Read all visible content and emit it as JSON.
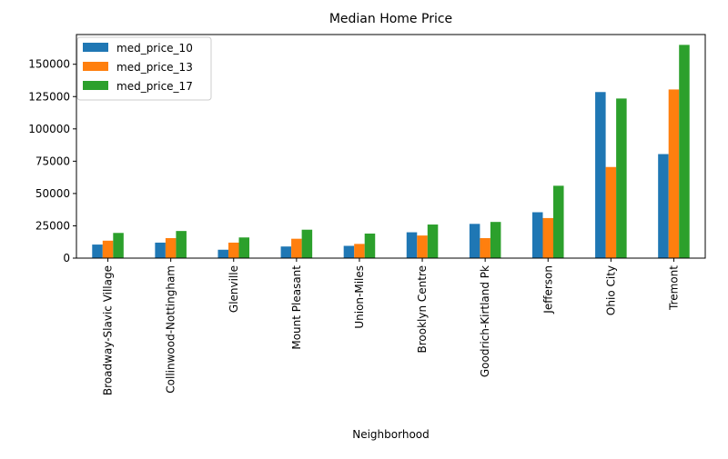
{
  "chart_data": {
    "type": "bar",
    "title": "Median Home Price",
    "xlabel": "Neighborhood",
    "ylabel": "",
    "ylim": [
      0,
      173000
    ],
    "yticks": [
      0,
      25000,
      50000,
      75000,
      100000,
      125000,
      150000
    ],
    "ytick_labels": [
      "0",
      "25000",
      "50000",
      "75000",
      "100000",
      "125000",
      "150000"
    ],
    "grid": false,
    "legend_position": "top-left",
    "categories": [
      "Broadway-Slavic Village",
      "Collinwood-Nottingham",
      "Glenville",
      "Mount Pleasant",
      "Union-Miles",
      "Brooklyn Centre",
      "Goodrich-Kirtland Pk",
      "Jefferson",
      "Ohio City",
      "Tremont"
    ],
    "series": [
      {
        "name": "med_price_10",
        "color": "#1f77b4",
        "values": [
          10500,
          12000,
          6500,
          9000,
          9500,
          20000,
          26500,
          35500,
          128500,
          80500
        ]
      },
      {
        "name": "med_price_13",
        "color": "#ff7f0e",
        "values": [
          13500,
          15500,
          12000,
          15000,
          11000,
          17500,
          15500,
          31000,
          70500,
          130500
        ]
      },
      {
        "name": "med_price_17",
        "color": "#2ca02c",
        "values": [
          19500,
          21000,
          16000,
          22000,
          19000,
          26000,
          28000,
          56000,
          123500,
          165000
        ]
      }
    ]
  }
}
